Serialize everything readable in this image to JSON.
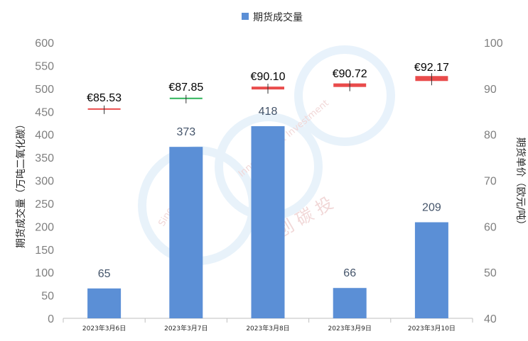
{
  "chart_data": {
    "type": "bar",
    "categories": [
      "2023年3月6日",
      "2023年3月7日",
      "2023年3月8日",
      "2023年3月9日",
      "2023年3月10日"
    ],
    "series": [
      {
        "name": "期货成交量",
        "values": [
          65,
          373,
          418,
          66,
          209
        ],
        "color": "#5b8fd6",
        "axis": "left"
      }
    ],
    "price_series": {
      "axis": "right",
      "values": [
        85.53,
        87.85,
        90.1,
        90.72,
        92.17
      ],
      "labels": [
        "€85.53",
        "€87.85",
        "€90.10",
        "€90.72",
        "€92.17"
      ],
      "colors": [
        "#e94b4b",
        "#2fb45a",
        "#e94b4b",
        "#e94b4b",
        "#e94b4b"
      ]
    },
    "ylabel": "期货成交量（万吨二氧化碳）",
    "y2label": "期货单价（欧元/吨）",
    "ylim": [
      0,
      600
    ],
    "y2lim": [
      40,
      100
    ],
    "yticks": [
      "0",
      "50",
      "100",
      "150",
      "200",
      "250",
      "300",
      "350",
      "400",
      "450",
      "500",
      "550",
      "600"
    ],
    "y2ticks": [
      "40",
      "50",
      "60",
      "70",
      "80",
      "90",
      "100"
    ],
    "legend_position": "top",
    "grid": false
  },
  "watermark": {
    "logo_text_1": "Sino Carbon",
    "logo_text_2": "Innovation & Investment",
    "logo_chars": "创 碳 投"
  }
}
